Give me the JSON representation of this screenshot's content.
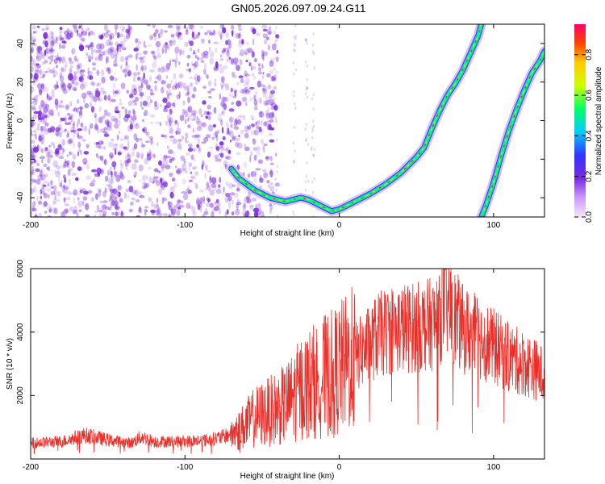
{
  "figure": {
    "title": "GN05.2026.097.09.24.G11"
  },
  "colors": {
    "snr_line": "#e8302a",
    "scatter_points": "#7a2bd8",
    "axis": "#000000"
  },
  "chart_data": [
    {
      "type": "heatmap",
      "title": "GN05.2026.097.09.24.G11",
      "xlabel": "Height of straight line (km)",
      "ylabel": "Frequency (Hz)",
      "xlim": [
        -200,
        133
      ],
      "ylim": [
        -50,
        50
      ],
      "x_ticks": [
        -200,
        -100,
        0,
        100
      ],
      "y_ticks": [
        -40,
        -20,
        0,
        20,
        40
      ],
      "colorbar": {
        "label": "Normalized spectral amplitude",
        "range": [
          0,
          0.95
        ],
        "ticks": [
          0.0,
          0.2,
          0.4,
          0.6,
          0.8
        ],
        "colormap": [
          "#f4e8fb",
          "#cc99ff",
          "#7a2be0",
          "#3333ff",
          "#00ccff",
          "#00ff66",
          "#ccff00",
          "#ffcc00",
          "#ff4400",
          "#ff0066"
        ]
      },
      "traces": [
        {
          "points": [
            [
              -70,
              -25
            ],
            [
              -65,
              -30
            ],
            [
              -60,
              -33
            ],
            [
              -55,
              -36
            ],
            [
              -50,
              -38
            ],
            [
              -45,
              -40
            ],
            [
              -40,
              -41
            ],
            [
              -35,
              -42
            ],
            [
              -30,
              -41
            ],
            [
              -25,
              -40
            ],
            [
              -20,
              -41
            ],
            [
              -15,
              -43
            ],
            [
              -10,
              -45
            ],
            [
              -5,
              -47
            ],
            [
              0,
              -46
            ],
            [
              5,
              -44
            ],
            [
              10,
              -42
            ],
            [
              20,
              -38
            ],
            [
              30,
              -33
            ],
            [
              40,
              -27
            ],
            [
              50,
              -19
            ],
            [
              55,
              -14
            ],
            [
              60,
              -4
            ],
            [
              65,
              5
            ],
            [
              70,
              13
            ],
            [
              75,
              19
            ],
            [
              80,
              26
            ],
            [
              85,
              35
            ],
            [
              90,
              44
            ],
            [
              92,
              50
            ]
          ]
        },
        {
          "points": [
            [
              92,
              -50
            ],
            [
              95,
              -44
            ],
            [
              100,
              -32
            ],
            [
              105,
              -18
            ],
            [
              110,
              -5
            ],
            [
              115,
              6
            ],
            [
              120,
              16
            ],
            [
              125,
              25
            ],
            [
              130,
              31
            ],
            [
              133,
              36
            ]
          ]
        }
      ]
    },
    {
      "type": "line",
      "xlabel": "Height of straight line (km)",
      "ylabel": "SNR (10 * v/v)",
      "xlim": [
        -200,
        133
      ],
      "ylim": [
        0,
        6000
      ],
      "x_ticks": [
        -200,
        -100,
        0,
        100
      ],
      "y_ticks": [
        2000,
        4000,
        6000
      ],
      "envelope": {
        "x": [
          -200,
          -180,
          -165,
          -150,
          -135,
          -128,
          -120,
          -100,
          -85,
          -75,
          -65,
          -55,
          -45,
          -35,
          -25,
          -15,
          -5,
          5,
          15,
          25,
          35,
          50,
          65,
          67,
          80,
          95,
          110,
          120,
          128,
          133
        ],
        "y": [
          500,
          550,
          750,
          600,
          500,
          700,
          550,
          550,
          600,
          700,
          900,
          1300,
          1500,
          1700,
          2200,
          2500,
          2700,
          3000,
          3400,
          3900,
          4100,
          4150,
          4300,
          5000,
          4100,
          3700,
          3200,
          3000,
          2800,
          2600
        ]
      }
    }
  ]
}
